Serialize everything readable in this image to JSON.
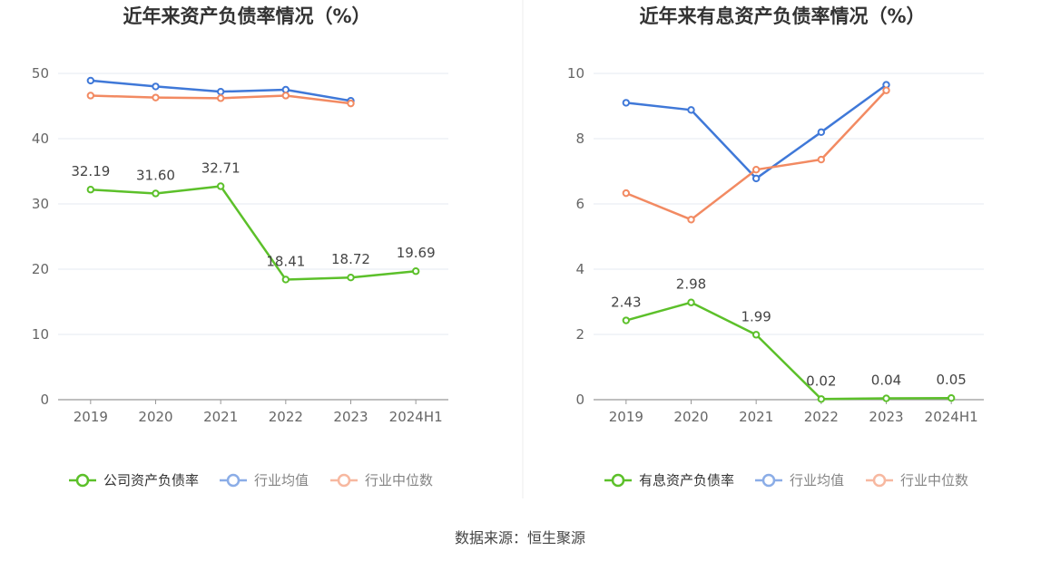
{
  "footer": {
    "source": "数据来源：恒生聚源"
  },
  "colors": {
    "company": "#5cc02a",
    "avg": "#3f78d8",
    "median": "#f28a62",
    "grid": "#e6e9f2",
    "axis": "#999999"
  },
  "chart_data": [
    {
      "type": "line",
      "title": "近年来资产负债率情况（%）",
      "categories": [
        "2019",
        "2020",
        "2021",
        "2022",
        "2023",
        "2024H1"
      ],
      "ylim": [
        0,
        50
      ],
      "yticks": [
        0,
        10,
        20,
        30,
        40,
        50
      ],
      "legend_position": "bottom",
      "series": [
        {
          "name": "公司资产负债率",
          "key": "company",
          "values": [
            32.19,
            31.6,
            32.71,
            18.41,
            18.72,
            19.69
          ],
          "labels": [
            "32.19",
            "31.60",
            "32.71",
            "18.41",
            "18.72",
            "19.69"
          ]
        },
        {
          "name": "行业均值",
          "key": "avg",
          "values": [
            48.9,
            48.0,
            47.2,
            47.5,
            45.8,
            null
          ]
        },
        {
          "name": "行业中位数",
          "key": "median",
          "values": [
            46.6,
            46.3,
            46.2,
            46.6,
            45.4,
            null
          ]
        }
      ]
    },
    {
      "type": "line",
      "title": "近年来有息资产负债率情况（%）",
      "categories": [
        "2019",
        "2020",
        "2021",
        "2022",
        "2023",
        "2024H1"
      ],
      "ylim": [
        0,
        10
      ],
      "yticks": [
        0,
        2,
        4,
        6,
        8,
        10
      ],
      "legend_position": "bottom",
      "series": [
        {
          "name": "有息资产负债率",
          "key": "company",
          "values": [
            2.43,
            2.98,
            1.99,
            0.02,
            0.04,
            0.05
          ],
          "labels": [
            "2.43",
            "2.98",
            "1.99",
            "0.02",
            "0.04",
            "0.05"
          ]
        },
        {
          "name": "行业均值",
          "key": "avg",
          "values": [
            9.1,
            8.88,
            6.78,
            8.2,
            9.65,
            null
          ]
        },
        {
          "name": "行业中位数",
          "key": "median",
          "values": [
            6.33,
            5.52,
            7.05,
            7.36,
            9.48,
            null
          ]
        }
      ]
    }
  ]
}
